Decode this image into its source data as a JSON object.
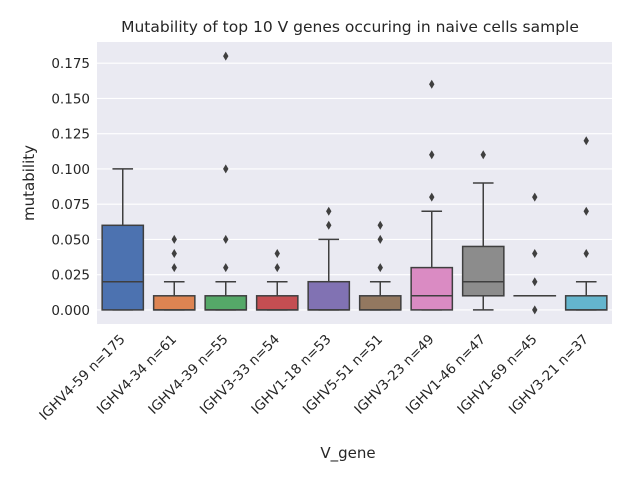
{
  "chart_data": {
    "type": "box",
    "title": "Mutability of top 10 V genes occuring in naive cells sample",
    "xlabel": "V_gene",
    "ylabel": "mutability",
    "ylim": [
      -0.01,
      0.19
    ],
    "yticks": [
      0.0,
      0.025,
      0.05,
      0.075,
      0.1,
      0.125,
      0.15,
      0.175
    ],
    "ytick_labels": [
      "0.000",
      "0.025",
      "0.050",
      "0.075",
      "0.100",
      "0.125",
      "0.150",
      "0.175"
    ],
    "grid": true,
    "categories": [
      "IGHV4-59 n=175",
      "IGHV4-34 n=61",
      "IGHV4-39 n=55",
      "IGHV3-33 n=54",
      "IGHV1-18 n=53",
      "IGHV5-51 n=51",
      "IGHV3-23 n=49",
      "IGHV1-46 n=47",
      "IGHV1-69 n=45",
      "IGHV3-21 n=37"
    ],
    "boxes": [
      {
        "whislo": 0.0,
        "q1": 0.0,
        "med": 0.02,
        "q3": 0.06,
        "whishi": 0.1,
        "fliers": [],
        "color": "#4c72b0"
      },
      {
        "whislo": 0.0,
        "q1": 0.0,
        "med": 0.0,
        "q3": 0.01,
        "whishi": 0.02,
        "fliers": [
          0.03,
          0.04,
          0.05
        ],
        "color": "#dd8452"
      },
      {
        "whislo": 0.0,
        "q1": 0.0,
        "med": 0.0,
        "q3": 0.01,
        "whishi": 0.02,
        "fliers": [
          0.03,
          0.05,
          0.1,
          0.18
        ],
        "color": "#55a868"
      },
      {
        "whislo": 0.0,
        "q1": 0.0,
        "med": 0.0,
        "q3": 0.01,
        "whishi": 0.02,
        "fliers": [
          0.03,
          0.04
        ],
        "color": "#c44e52"
      },
      {
        "whislo": 0.0,
        "q1": 0.0,
        "med": 0.0,
        "q3": 0.02,
        "whishi": 0.05,
        "fliers": [
          0.06,
          0.07
        ],
        "color": "#8172b3"
      },
      {
        "whislo": 0.0,
        "q1": 0.0,
        "med": 0.0,
        "q3": 0.01,
        "whishi": 0.02,
        "fliers": [
          0.03,
          0.05,
          0.06
        ],
        "color": "#937860"
      },
      {
        "whislo": 0.0,
        "q1": 0.0,
        "med": 0.01,
        "q3": 0.03,
        "whishi": 0.07,
        "fliers": [
          0.08,
          0.11,
          0.16
        ],
        "color": "#da8bc3"
      },
      {
        "whislo": 0.0,
        "q1": 0.01,
        "med": 0.02,
        "q3": 0.045,
        "whishi": 0.09,
        "fliers": [
          0.11
        ],
        "color": "#8c8c8c"
      },
      {
        "whislo": 0.01,
        "q1": 0.01,
        "med": 0.01,
        "q3": 0.01,
        "whishi": 0.01,
        "fliers": [
          0.0,
          0.02,
          0.04,
          0.08
        ],
        "color": "#ccb974"
      },
      {
        "whislo": 0.0,
        "q1": 0.0,
        "med": 0.0,
        "q3": 0.01,
        "whishi": 0.02,
        "fliers": [
          0.04,
          0.07,
          0.12
        ],
        "color": "#64b5cd"
      }
    ]
  }
}
